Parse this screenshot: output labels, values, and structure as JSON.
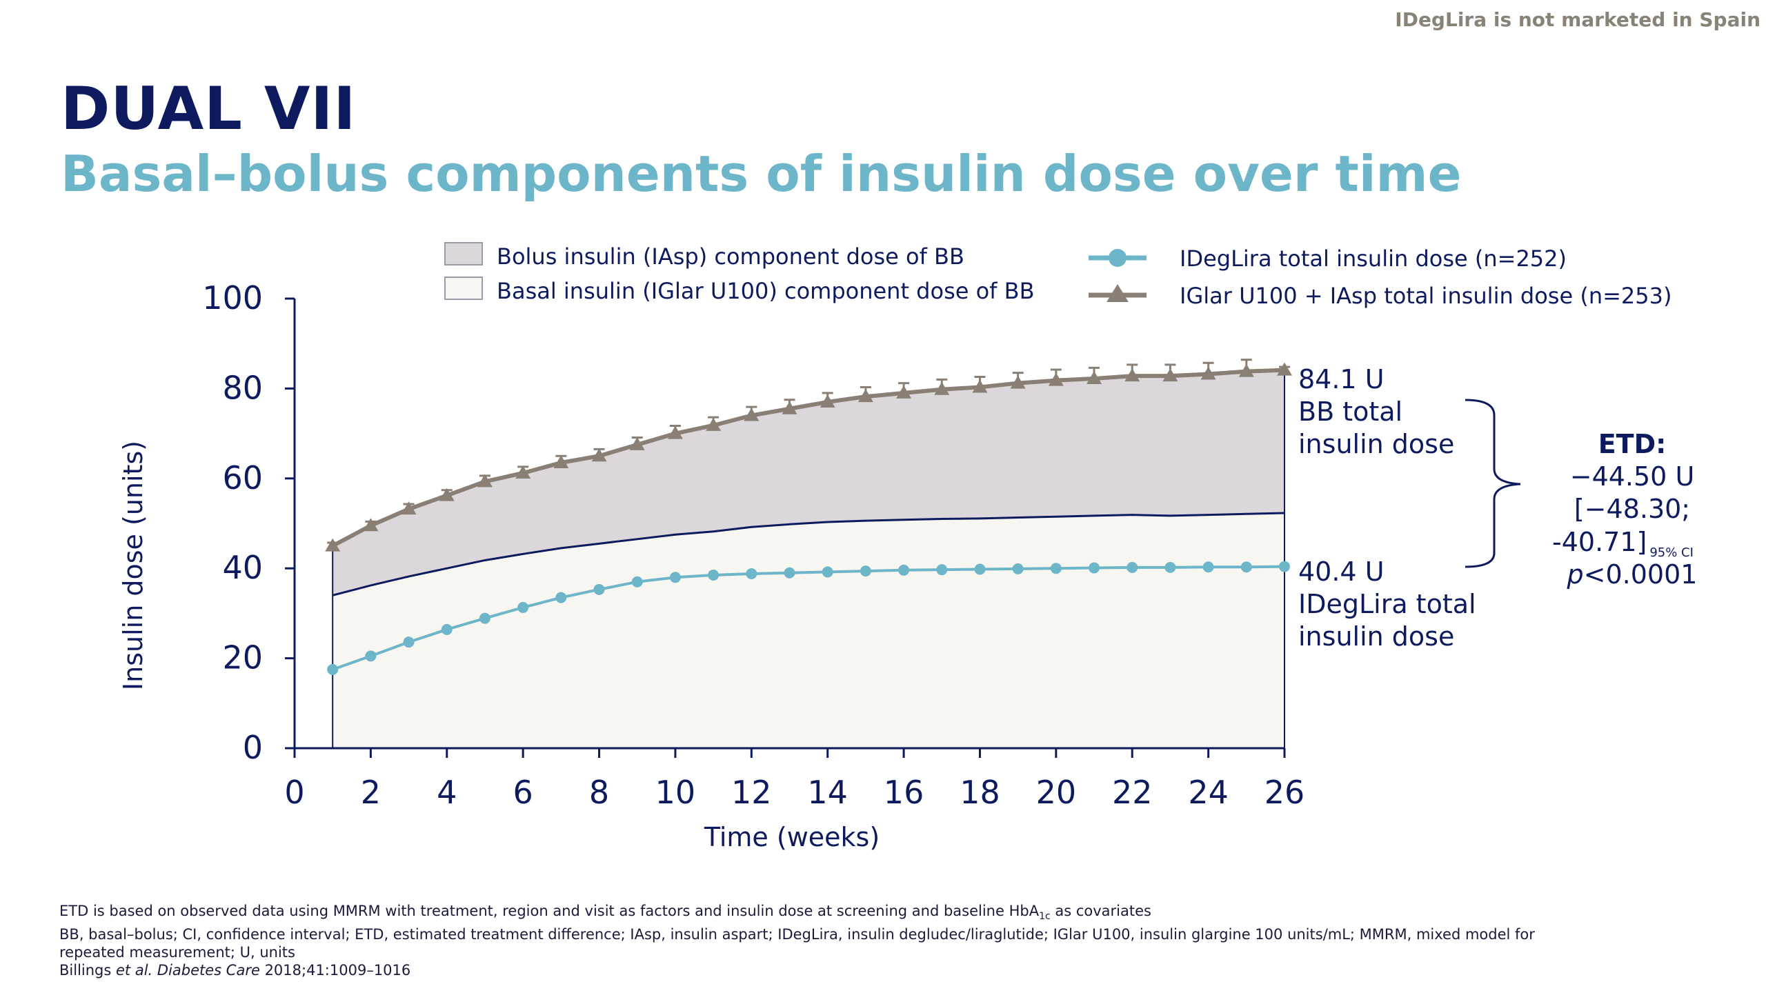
{
  "notice": "IDegLira is not marketed in Spain",
  "title": "DUAL VII",
  "subtitle": "Basal–bolus components of insulin dose over time",
  "legend": {
    "bolus": "Bolus insulin (IAsp) component dose of BB",
    "basal": "Basal insulin (IGlar U100) component dose of BB",
    "ideglira": "IDegLira total insulin dose (n=252)",
    "bb_total": "IGlar U100 + IAsp total insulin dose (n=253)"
  },
  "annotations": {
    "bb_value": "84.1 U",
    "bb_label_1": "BB total",
    "bb_label_2": "insulin dose",
    "ideg_value": "40.4 U",
    "ideg_label_1": "IDegLira total",
    "ideg_label_2": "insulin dose",
    "etd_title": "ETD:",
    "etd_value": "−44.50 U",
    "etd_ci_1": "[−48.30;",
    "etd_ci_2": "-40.71]",
    "etd_ci_sub": "95% CI",
    "etd_p_italic": "p",
    "etd_p_rest": "<0.0001"
  },
  "footnotes": {
    "line1_main": "ETD is based on observed data using MMRM with treatment, region and visit as factors and insulin dose at screening and baseline HbA",
    "line1_sub": "1c",
    "line1_end": " as covariates",
    "line2": "BB, basal–bolus; CI, confidence interval; ETD, estimated treatment difference; IAsp, insulin aspart; IDegLira, insulin degludec/liraglutide; IGlar U100, insulin glargine 100 units/mL; MMRM, mixed model for",
    "line3": "repeated measurement; U, units",
    "line4_author": "Billings ",
    "line4_etal": "et al.",
    "line4_journal": " Diabetes Care",
    "line4_end": " 2018;41:1009–1016"
  },
  "colors": {
    "navy": "#0d1b5e",
    "teal": "#6db6ca",
    "bb_line": "#8a7f74",
    "bolus_fill": "#dcd7da",
    "basal_fill": "#f7f6f1"
  },
  "chart_data": {
    "type": "area",
    "xlabel": "Time (weeks)",
    "ylabel": "Insulin dose (units)",
    "xlim": [
      0,
      26
    ],
    "ylim": [
      0,
      100
    ],
    "x_ticks": [
      0,
      2,
      4,
      6,
      8,
      10,
      12,
      14,
      16,
      18,
      20,
      22,
      24,
      26
    ],
    "y_ticks": [
      0,
      20,
      40,
      60,
      80,
      100
    ],
    "x": [
      1,
      2,
      3,
      4,
      5,
      6,
      7,
      8,
      9,
      10,
      11,
      12,
      13,
      14,
      15,
      16,
      17,
      18,
      19,
      20,
      21,
      22,
      23,
      24,
      25,
      26
    ],
    "series": [
      {
        "name": "IGlar U100 + IAsp total insulin dose (n=253)",
        "values": [
          45,
          49.5,
          53.2,
          56.2,
          59.3,
          61.2,
          63.5,
          65,
          67.5,
          70,
          71.8,
          74,
          75.5,
          77,
          78.2,
          79,
          79.8,
          80.3,
          81.2,
          81.8,
          82.2,
          82.8,
          82.8,
          83.2,
          83.8,
          84.1
        ],
        "error": [
          0.7,
          0.9,
          1.1,
          1.2,
          1.3,
          1.4,
          1.5,
          1.5,
          1.6,
          1.7,
          1.8,
          1.9,
          2,
          2,
          2.1,
          2.2,
          2.2,
          2.3,
          2.3,
          2.4,
          2.4,
          2.5,
          2.5,
          2.5,
          2.6,
          0.7
        ]
      },
      {
        "name": "Basal insulin (IGlar U100) component dose of BB",
        "values": [
          34,
          36.2,
          38.2,
          40,
          41.8,
          43.2,
          44.5,
          45.5,
          46.5,
          47.5,
          48.2,
          49.2,
          49.8,
          50.3,
          50.6,
          50.8,
          51,
          51.1,
          51.3,
          51.5,
          51.7,
          51.9,
          51.7,
          51.9,
          52.1,
          52.3
        ]
      },
      {
        "name": "IDegLira total insulin dose (n=252)",
        "values": [
          17.5,
          20.5,
          23.6,
          26.4,
          28.9,
          31.3,
          33.5,
          35.3,
          37,
          38,
          38.5,
          38.8,
          39,
          39.2,
          39.4,
          39.6,
          39.7,
          39.8,
          39.9,
          40,
          40.1,
          40.2,
          40.2,
          40.3,
          40.3,
          40.4
        ]
      }
    ]
  }
}
